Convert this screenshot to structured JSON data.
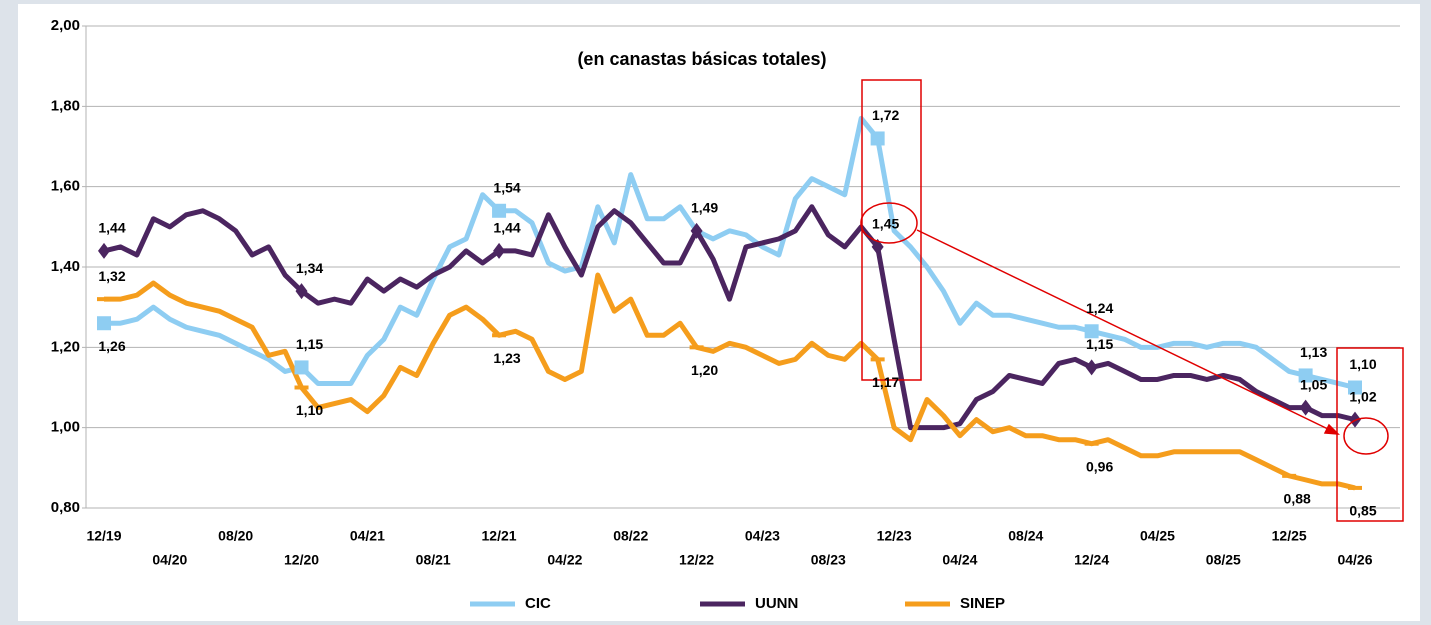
{
  "chart_data": {
    "type": "line",
    "title": "(en canastas básicas totales)",
    "categories": [
      "12/19",
      null,
      null,
      null,
      "04/20",
      null,
      null,
      null,
      "08/20",
      null,
      null,
      null,
      "12/20",
      null,
      null,
      null,
      "04/21",
      null,
      null,
      null,
      "08/21",
      null,
      null,
      null,
      "12/21",
      null,
      null,
      null,
      "04/22",
      null,
      null,
      null,
      "08/22",
      null,
      null,
      null,
      "12/22",
      null,
      null,
      null,
      "04/23",
      null,
      null,
      null,
      "08/23",
      null,
      null,
      null,
      "12/23",
      null,
      null,
      null,
      "04/24",
      null,
      null,
      null,
      "08/24",
      null,
      null,
      null,
      "12/24",
      null,
      null,
      null,
      "04/25",
      null,
      null,
      null,
      "08/25",
      null,
      null,
      null,
      "12/25",
      null,
      null,
      null,
      "04/26"
    ],
    "ylim": [
      0.8,
      2.0
    ],
    "yticks": [
      {
        "value": 0.8,
        "label": "0,80"
      },
      {
        "value": 1.0,
        "label": "1,00"
      },
      {
        "value": 1.2,
        "label": "1,20"
      },
      {
        "value": 1.4,
        "label": "1,40"
      },
      {
        "value": 1.6,
        "label": "1,60"
      },
      {
        "value": 1.8,
        "label": "1,80"
      },
      {
        "value": 2.0,
        "label": "2,00"
      }
    ],
    "grid": true,
    "legend": "bottom",
    "series": [
      {
        "name": "CIC",
        "color": "#8ecdf2",
        "values": [
          1.26,
          1.26,
          1.27,
          1.3,
          1.27,
          1.25,
          1.24,
          1.23,
          1.21,
          1.19,
          1.17,
          1.14,
          1.15,
          1.11,
          1.11,
          1.11,
          1.18,
          1.22,
          1.3,
          1.28,
          1.37,
          1.45,
          1.47,
          1.58,
          1.54,
          1.54,
          1.51,
          1.41,
          1.39,
          1.4,
          1.55,
          1.46,
          1.63,
          1.52,
          1.52,
          1.55,
          1.49,
          1.47,
          1.49,
          1.48,
          1.45,
          1.43,
          1.57,
          1.62,
          1.6,
          1.58,
          1.77,
          1.72,
          1.49,
          1.45,
          1.4,
          1.34,
          1.26,
          1.31,
          1.28,
          1.28,
          1.27,
          1.26,
          1.25,
          1.25,
          1.24,
          1.23,
          1.22,
          1.2,
          1.2,
          1.21,
          1.21,
          1.2,
          1.21,
          1.21,
          1.2,
          1.17,
          1.14,
          1.13,
          1.12,
          1.11,
          1.1
        ],
        "value_labels": [
          "1,26",
          null,
          null,
          null,
          null,
          null,
          null,
          null,
          null,
          null,
          null,
          null,
          "1,15",
          null,
          null,
          null,
          null,
          null,
          null,
          null,
          null,
          null,
          null,
          null,
          "1,54",
          null,
          null,
          null,
          null,
          null,
          null,
          null,
          null,
          null,
          null,
          null,
          null,
          null,
          null,
          null,
          null,
          null,
          null,
          null,
          null,
          null,
          null,
          "1,72",
          null,
          null,
          null,
          null,
          null,
          null,
          null,
          null,
          null,
          null,
          null,
          null,
          "1,24",
          null,
          null,
          null,
          null,
          null,
          null,
          null,
          null,
          null,
          null,
          null,
          null,
          "1,13",
          null,
          null,
          "1,10"
        ]
      },
      {
        "name": "UUNN",
        "color": "#4b2560",
        "values": [
          1.44,
          1.45,
          1.43,
          1.52,
          1.5,
          1.53,
          1.54,
          1.52,
          1.49,
          1.43,
          1.45,
          1.38,
          1.34,
          1.31,
          1.32,
          1.31,
          1.37,
          1.34,
          1.37,
          1.35,
          1.38,
          1.4,
          1.44,
          1.41,
          1.44,
          1.44,
          1.43,
          1.53,
          1.45,
          1.38,
          1.5,
          1.54,
          1.51,
          1.46,
          1.41,
          1.41,
          1.49,
          1.42,
          1.32,
          1.45,
          1.46,
          1.47,
          1.49,
          1.55,
          1.48,
          1.45,
          1.5,
          1.45,
          1.22,
          1.0,
          1.0,
          1.0,
          1.01,
          1.07,
          1.09,
          1.13,
          1.12,
          1.11,
          1.16,
          1.17,
          1.15,
          1.16,
          1.14,
          1.12,
          1.12,
          1.13,
          1.13,
          1.12,
          1.13,
          1.12,
          1.09,
          1.07,
          1.05,
          1.05,
          1.03,
          1.03,
          1.02
        ],
        "value_labels": [
          "1,44",
          null,
          null,
          null,
          null,
          null,
          null,
          null,
          null,
          null,
          null,
          null,
          "1,34",
          null,
          null,
          null,
          null,
          null,
          null,
          null,
          null,
          null,
          null,
          null,
          "1,44",
          null,
          null,
          null,
          null,
          null,
          null,
          null,
          null,
          null,
          null,
          null,
          "1,49",
          null,
          null,
          null,
          null,
          null,
          null,
          null,
          null,
          null,
          null,
          "1,45",
          null,
          null,
          null,
          null,
          null,
          null,
          null,
          null,
          null,
          null,
          null,
          null,
          "1,15",
          null,
          null,
          null,
          null,
          null,
          null,
          null,
          null,
          null,
          null,
          null,
          null,
          "1,05",
          null,
          null,
          "1,02"
        ]
      },
      {
        "name": "SINEP",
        "color": "#f59d1c",
        "values": [
          1.32,
          1.32,
          1.33,
          1.36,
          1.33,
          1.31,
          1.3,
          1.29,
          1.27,
          1.25,
          1.18,
          1.19,
          1.1,
          1.05,
          1.06,
          1.07,
          1.04,
          1.08,
          1.15,
          1.13,
          1.21,
          1.28,
          1.3,
          1.27,
          1.23,
          1.24,
          1.22,
          1.14,
          1.12,
          1.14,
          1.38,
          1.29,
          1.32,
          1.23,
          1.23,
          1.26,
          1.2,
          1.19,
          1.21,
          1.2,
          1.18,
          1.16,
          1.17,
          1.21,
          1.18,
          1.17,
          1.21,
          1.17,
          1.0,
          0.97,
          1.07,
          1.03,
          0.98,
          1.02,
          0.99,
          1.0,
          0.98,
          0.98,
          0.97,
          0.97,
          0.96,
          0.97,
          0.95,
          0.93,
          0.93,
          0.94,
          0.94,
          0.94,
          0.94,
          0.94,
          0.92,
          0.9,
          0.88,
          0.87,
          0.86,
          0.86,
          0.85
        ],
        "value_labels": [
          "1,32",
          null,
          null,
          null,
          null,
          null,
          null,
          null,
          null,
          null,
          null,
          null,
          "1,10",
          null,
          null,
          null,
          null,
          null,
          null,
          null,
          null,
          null,
          null,
          null,
          "1,23",
          null,
          null,
          null,
          null,
          null,
          null,
          null,
          null,
          null,
          null,
          null,
          "1,20",
          null,
          null,
          null,
          null,
          null,
          null,
          null,
          null,
          null,
          null,
          "1,17",
          null,
          null,
          null,
          null,
          null,
          null,
          null,
          null,
          null,
          null,
          null,
          null,
          "0,96",
          null,
          null,
          null,
          null,
          null,
          null,
          null,
          null,
          null,
          null,
          null,
          "0,88",
          null,
          null,
          null,
          "0,85"
        ]
      }
    ]
  }
}
